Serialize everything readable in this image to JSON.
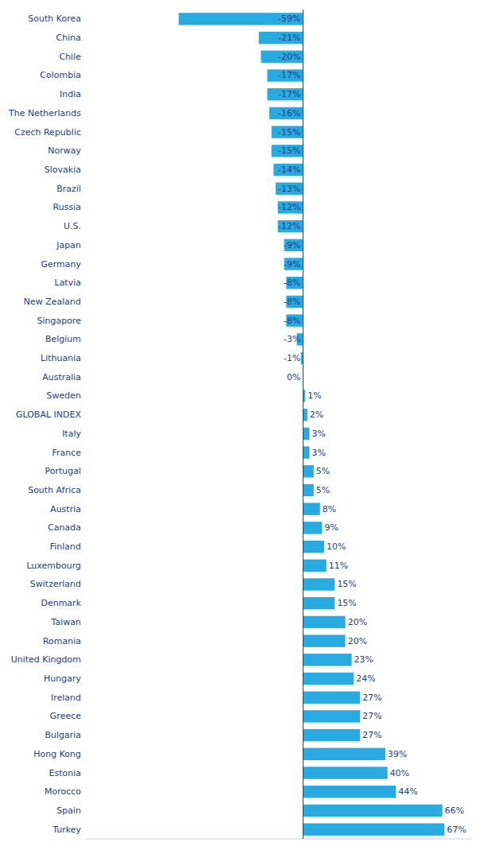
{
  "chart_data": {
    "type": "bar",
    "orientation": "horizontal",
    "categories": [
      "South Korea",
      "China",
      "Chile",
      "Colombia",
      "India",
      "The Netherlands",
      "Czech Republic",
      "Norway",
      "Slovakia",
      "Brazil",
      "Russia",
      "U.S.",
      "Japan",
      "Germany",
      "Latvia",
      "New Zealand",
      "Singapore",
      "Belgium",
      "Lithuania",
      "Australia",
      "Sweden",
      "GLOBAL INDEX",
      "Italy",
      "France",
      "Portugal",
      "South Africa",
      "Austria",
      "Canada",
      "Finland",
      "Luxembourg",
      "Switzerland",
      "Denmark",
      "Taiwan",
      "Romania",
      "United Kingdom",
      "Hungary",
      "Ireland",
      "Greece",
      "Bulgaria",
      "Hong Kong",
      "Estonia",
      "Morocco",
      "Spain",
      "Turkey"
    ],
    "values": [
      -59,
      -21,
      -20,
      -17,
      -17,
      -16,
      -15,
      -15,
      -14,
      -13,
      -12,
      -12,
      -9,
      -9,
      -8,
      -8,
      -8,
      -3,
      -1,
      0,
      1,
      2,
      3,
      3,
      5,
      5,
      8,
      9,
      10,
      11,
      15,
      15,
      20,
      20,
      23,
      24,
      27,
      27,
      27,
      39,
      40,
      44,
      66,
      67
    ],
    "value_labels": [
      "-59%",
      "-21%",
      "-20%",
      "-17%",
      "-17%",
      "-16%",
      "-15%",
      "-15%",
      "-14%",
      "-13%",
      "-12%",
      "-12%",
      "-9%",
      "-9%",
      "-8%",
      "-8%",
      "-8%",
      "-3%",
      "-1%",
      "0%",
      "1%",
      "2%",
      "3%",
      "3%",
      "5%",
      "5%",
      "8%",
      "9%",
      "10%",
      "11%",
      "15%",
      "15%",
      "20%",
      "20%",
      "23%",
      "24%",
      "27%",
      "27%",
      "27%",
      "39%",
      "40%",
      "44%",
      "66%",
      "67%"
    ],
    "color": "#29ABE2",
    "xlim": [
      -103,
      80
    ],
    "data_labels": true,
    "tick_labels": "y",
    "grid": false
  }
}
